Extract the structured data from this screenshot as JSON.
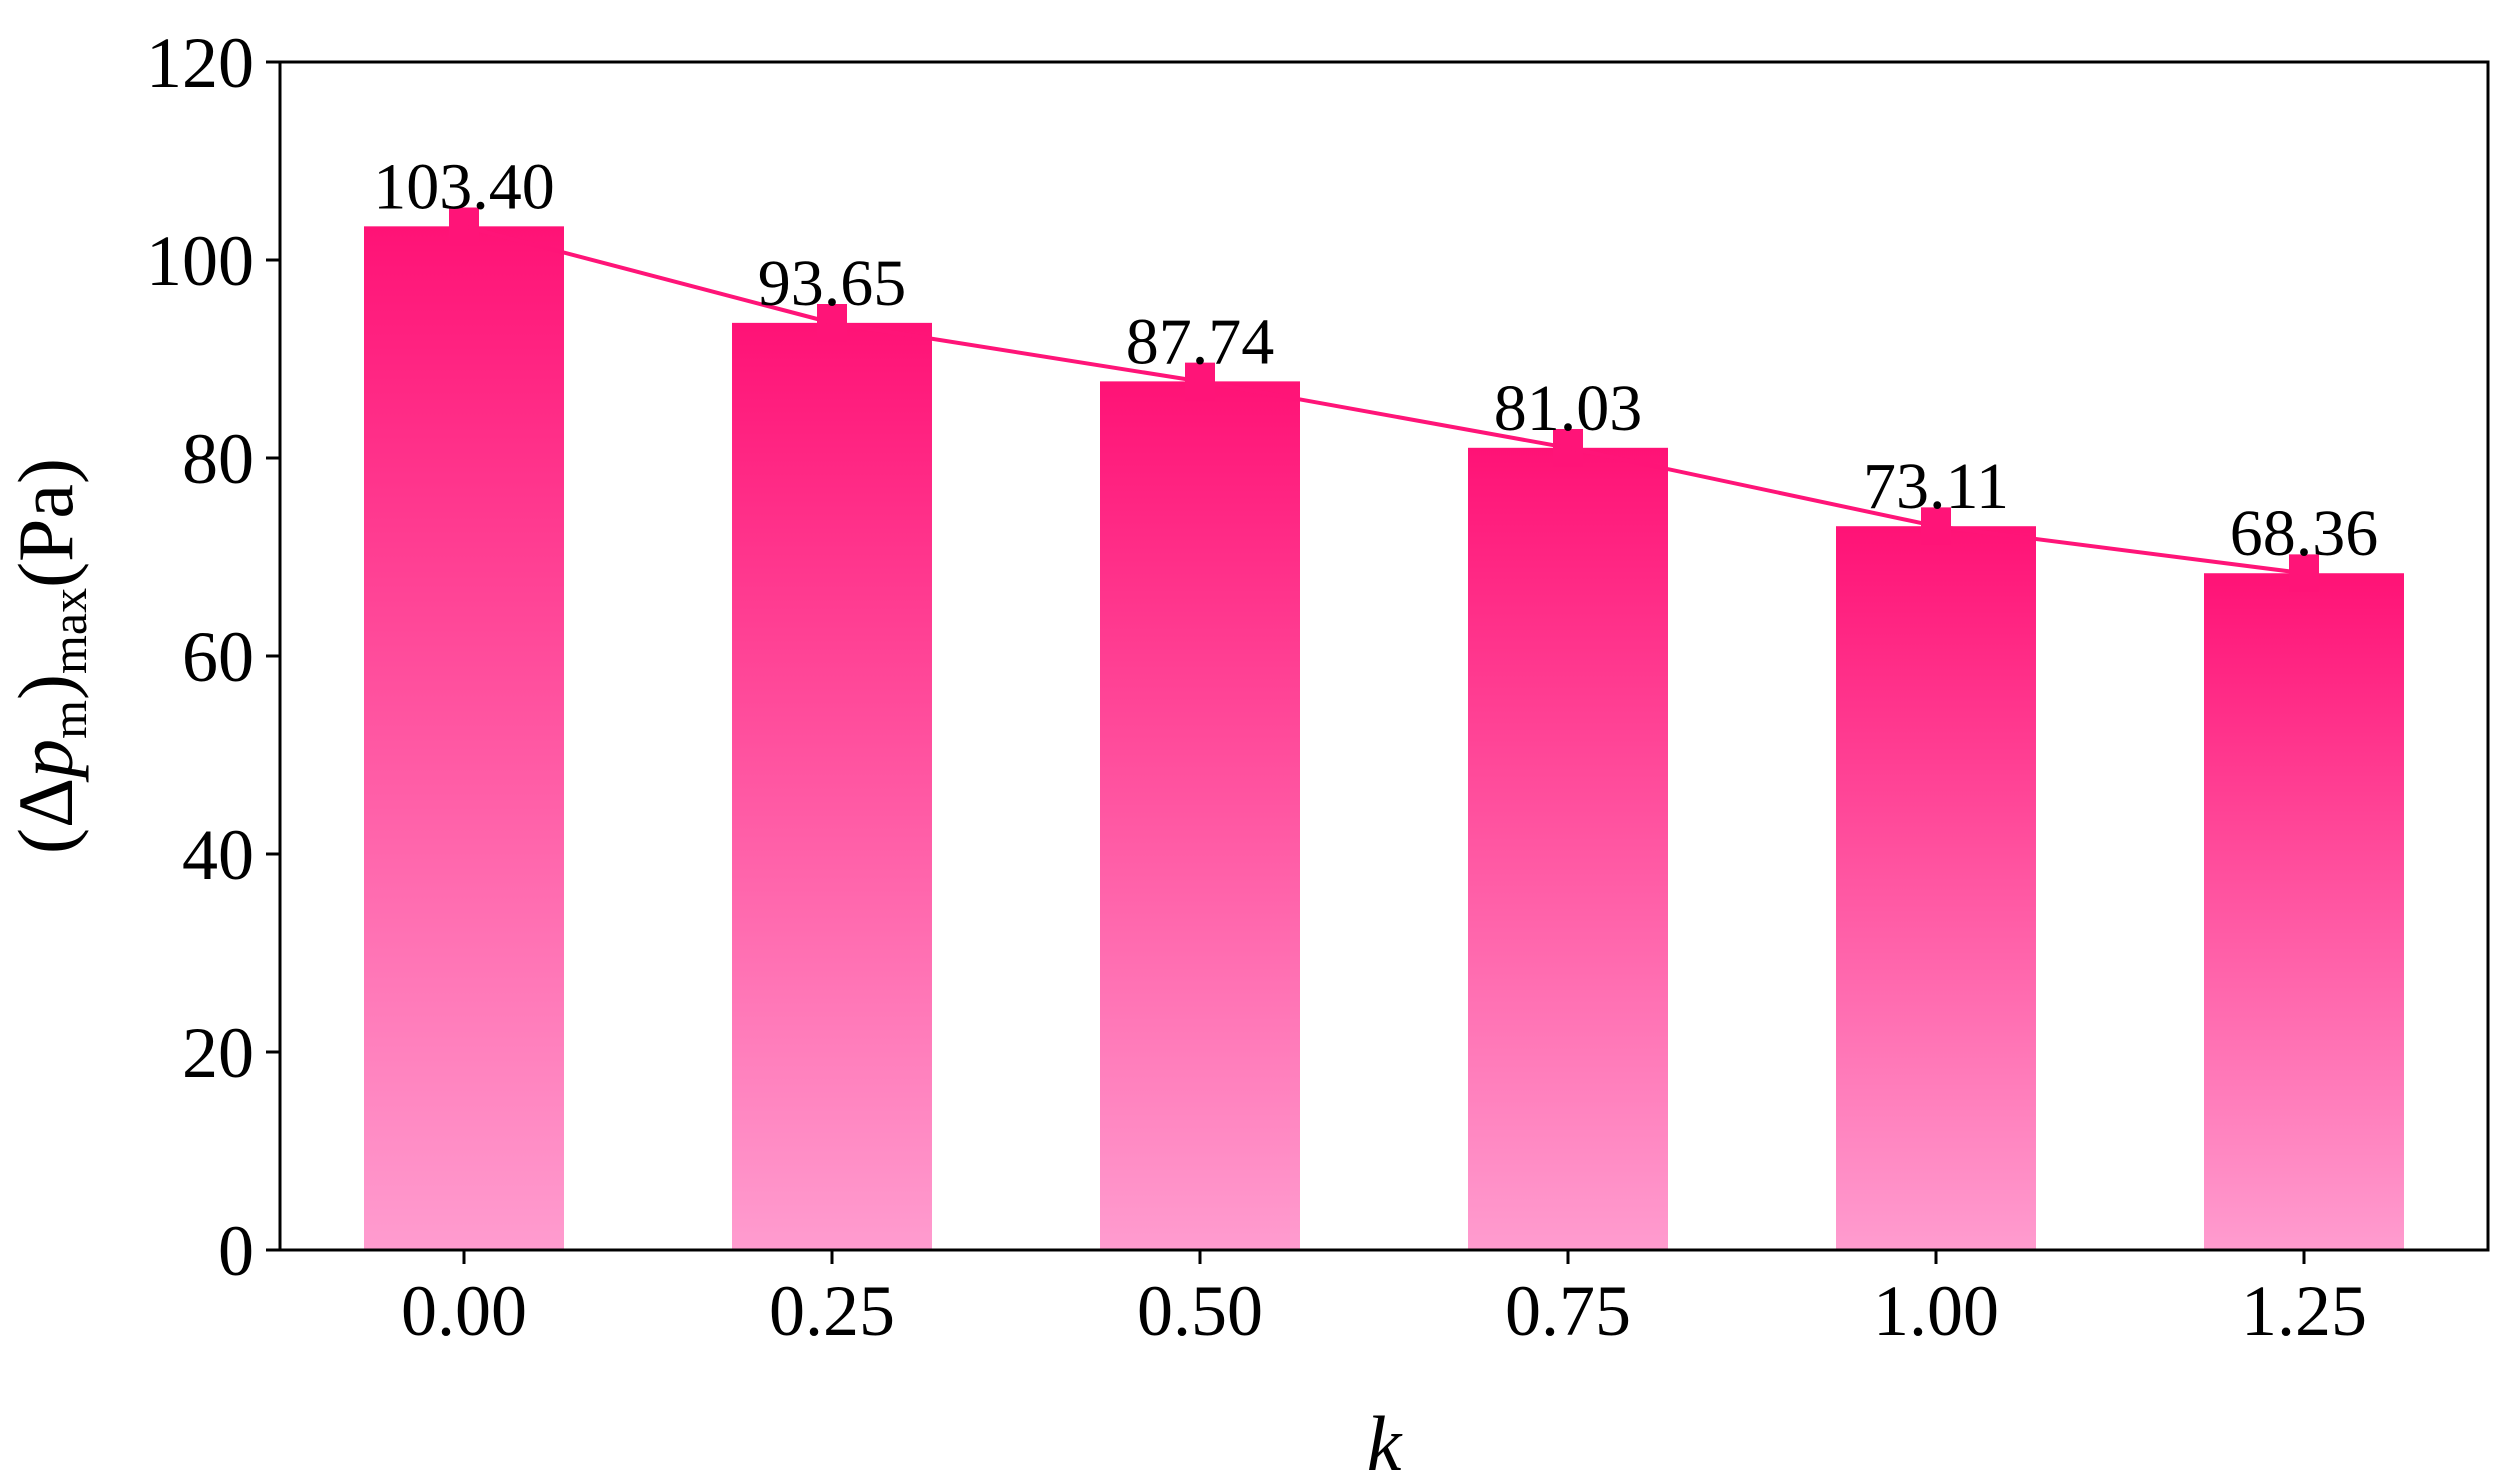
{
  "chart_data": {
    "type": "bar",
    "categories": [
      "0.00",
      "0.25",
      "0.50",
      "0.75",
      "1.00",
      "1.25"
    ],
    "values": [
      103.4,
      93.65,
      87.74,
      81.03,
      73.11,
      68.36
    ],
    "data_labels": [
      "103.40",
      "93.65",
      "87.74",
      "81.03",
      "73.11",
      "68.36"
    ],
    "error_upper": [
      1.9,
      1.9,
      1.9,
      1.9,
      1.9,
      1.9
    ],
    "error_lower": [
      1.9,
      1.9,
      1.9,
      1.9,
      1.9,
      1.9
    ],
    "overlay_line": true,
    "title": "",
    "xlabel": "k",
    "ylabel": {
      "open": "(Δ",
      "var": "p",
      "sub1": "m",
      "close": ")",
      "sub2": "max",
      "unit": "(Pa)"
    },
    "ylim": [
      0,
      120
    ],
    "yticks": [
      0,
      20,
      40,
      60,
      80,
      100,
      120
    ],
    "grid": false,
    "legend": "none",
    "colors": {
      "bar_top": "#ff1276",
      "bar_bottom": "#ff9ccf",
      "line": "#ff1478",
      "error": "#ff1478",
      "axis": "#000000"
    }
  }
}
